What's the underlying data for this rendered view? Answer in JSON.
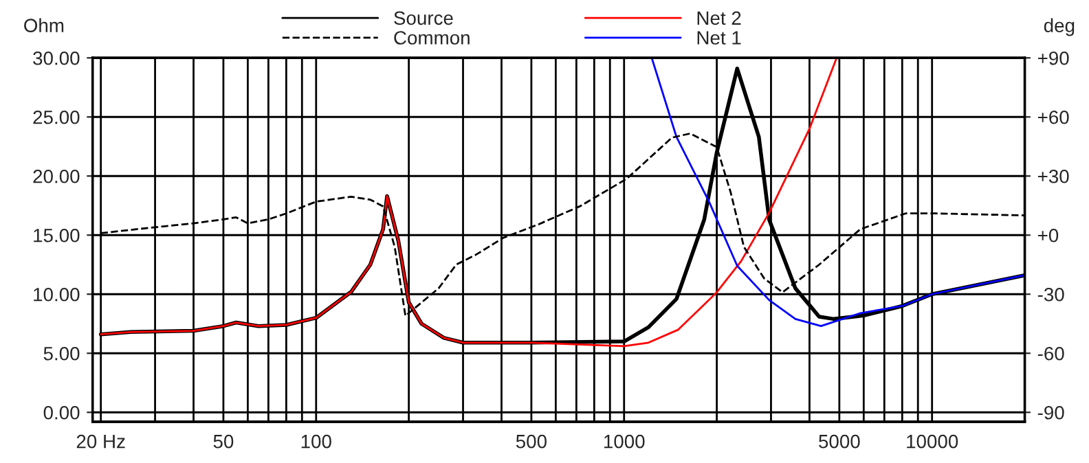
{
  "chart_data": {
    "type": "line",
    "ylabel": "Ohm",
    "y2label": "deg",
    "log": "x",
    "grid": true,
    "legend": "top",
    "xlim": [
      18.8,
      20000
    ],
    "ylim": [
      -0.8,
      30
    ],
    "y2lim": [
      -94.8,
      90
    ],
    "xticks": [
      {
        "value": 20,
        "label": "20 Hz"
      },
      {
        "value": 30,
        "label": null
      },
      {
        "value": 40,
        "label": null
      },
      50,
      {
        "value": 60,
        "label": null
      },
      {
        "value": 70,
        "label": null
      },
      {
        "value": 80,
        "label": null
      },
      {
        "value": 90,
        "label": null
      },
      100,
      {
        "value": 200,
        "label": null
      },
      {
        "value": 300,
        "label": null
      },
      {
        "value": 400,
        "label": null
      },
      500,
      {
        "value": 600,
        "label": null
      },
      {
        "value": 700,
        "label": null
      },
      {
        "value": 800,
        "label": null
      },
      {
        "value": 900,
        "label": null
      },
      1000,
      {
        "value": 2000,
        "label": null
      },
      {
        "value": 3000,
        "label": null
      },
      {
        "value": 4000,
        "label": null
      },
      5000,
      {
        "value": 6000,
        "label": null
      },
      {
        "value": 7000,
        "label": null
      },
      {
        "value": 8000,
        "label": null
      },
      {
        "value": 9000,
        "label": null
      },
      10000
    ],
    "yticks": [
      {
        "value": 0,
        "label": "0.00"
      },
      {
        "value": 5,
        "label": "5.00"
      },
      {
        "value": 10,
        "label": "10.00"
      },
      {
        "value": 15,
        "label": "15.00"
      },
      {
        "value": 20,
        "label": "20.00"
      },
      {
        "value": 25,
        "label": "25.00"
      },
      {
        "value": 30,
        "label": "30.00"
      }
    ],
    "y2ticks": [
      {
        "value": -90,
        "label": "-90"
      },
      {
        "value": -60,
        "label": "-60"
      },
      {
        "value": -30,
        "label": "-30"
      },
      {
        "value": 0,
        "label": "+0"
      },
      {
        "value": 30,
        "label": "+30"
      },
      {
        "value": 60,
        "label": "+60"
      },
      {
        "value": 90,
        "label": "+90"
      }
    ],
    "series": [
      {
        "name": "Source",
        "color": "#000000",
        "line_style": "solid",
        "x": [
          20,
          25,
          40,
          50,
          55,
          65,
          80,
          100,
          130,
          150,
          165,
          170,
          185,
          200,
          220,
          260,
          300,
          500,
          1000,
          1200,
          1480,
          1820,
          2000,
          2330,
          2740,
          2960,
          3600,
          4300,
          4800,
          6000,
          8000,
          10000,
          20000
        ],
        "values": [
          6.6,
          6.8,
          6.9,
          7.3,
          7.6,
          7.3,
          7.4,
          8.0,
          10.2,
          12.5,
          15.5,
          18.3,
          14.5,
          9.3,
          7.5,
          6.3,
          5.9,
          5.9,
          6.0,
          7.2,
          9.6,
          16.3,
          22,
          29.1,
          23.3,
          16.3,
          10.5,
          8.1,
          7.9,
          8.2,
          9.0,
          10.0,
          11.6
        ]
      },
      {
        "name": "Common",
        "color": "#000000",
        "line_style": "dashed",
        "axis": "y2",
        "x": [
          20,
          30,
          40,
          50,
          55,
          60,
          70,
          80,
          100,
          130,
          150,
          165,
          180,
          195,
          250,
          285,
          330,
          405,
          530,
          720,
          1020,
          1430,
          1640,
          2000,
          2220,
          2450,
          2850,
          3270,
          4300,
          5850,
          8200,
          10300,
          20000
        ],
        "values": [
          1,
          4,
          6,
          8,
          9,
          6,
          8,
          11,
          17,
          19.5,
          18,
          14.6,
          -6,
          -41,
          -27,
          -15,
          -10,
          -1.4,
          5.6,
          14.7,
          28.6,
          49.5,
          51.6,
          44.7,
          21.6,
          -6,
          -22,
          -29,
          -15,
          3,
          11,
          11,
          10
        ]
      },
      {
        "name": "Net 2",
        "color": "#ff0000",
        "line_style": "solid",
        "x": [
          20,
          25,
          40,
          50,
          55,
          65,
          80,
          100,
          130,
          150,
          165,
          170,
          185,
          200,
          220,
          260,
          300,
          500,
          1000,
          1200,
          1500,
          1990,
          2400,
          2960,
          4000,
          4900
        ],
        "values": [
          6.6,
          6.8,
          6.9,
          7.3,
          7.6,
          7.3,
          7.4,
          8.0,
          10.2,
          12.5,
          15.5,
          18.3,
          14.5,
          9.3,
          7.5,
          6.3,
          5.9,
          5.9,
          5.6,
          5.9,
          7.0,
          10.1,
          12.8,
          16.9,
          24,
          30
        ]
      },
      {
        "name": "Net 1",
        "color": "#0000ff",
        "line_style": "solid",
        "x": [
          1230,
          1480,
          1890,
          2330,
          2960,
          3600,
          4360,
          5860,
          8000,
          10000,
          20000
        ],
        "values": [
          30,
          23.3,
          17.8,
          12.4,
          9.5,
          7.9,
          7.3,
          8.4,
          9.0,
          10.0,
          11.6
        ]
      }
    ]
  }
}
